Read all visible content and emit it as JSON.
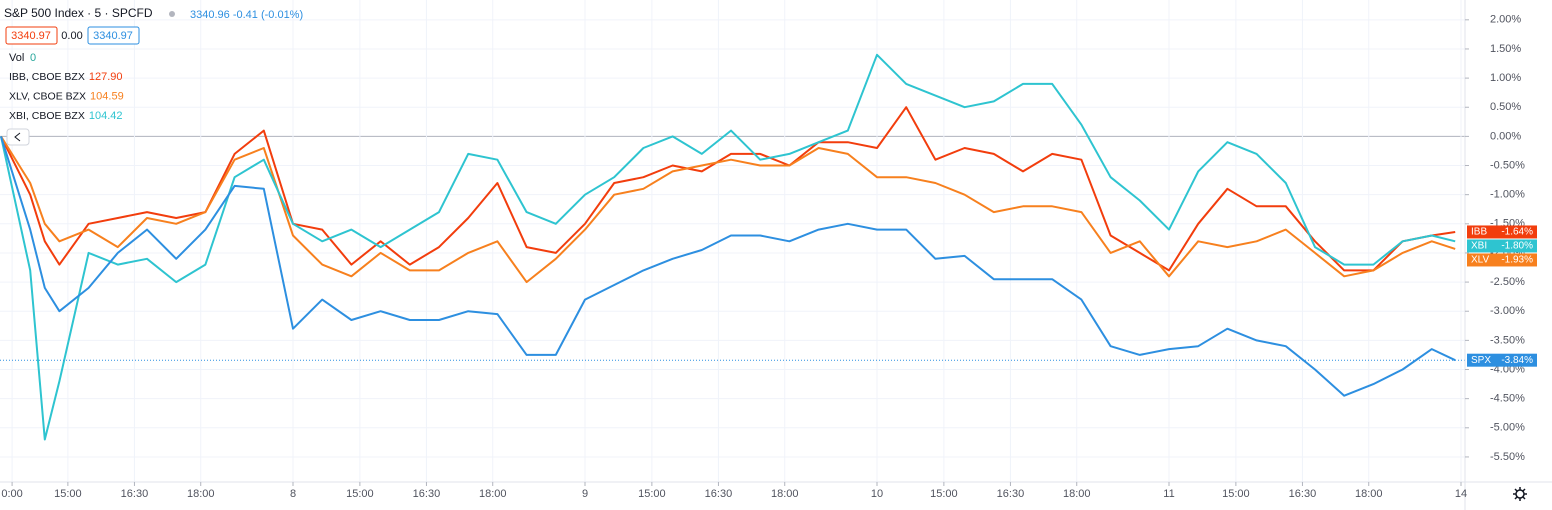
{
  "chart_data": {
    "type": "line",
    "quote": "3340.96  -0.41 (-0.01%)",
    "bid": "3340.97",
    "spread": "0.00",
    "ask": "3340.97",
    "volume_label": "Vol",
    "volume": 0,
    "x": [
      0,
      0.1,
      0.15,
      0.2,
      0.3,
      0.4,
      0.5,
      0.6,
      0.7,
      0.8,
      0.9,
      1.0,
      1.1,
      1.2,
      1.3,
      1.4,
      1.5,
      1.6,
      1.7,
      1.8,
      1.9,
      2.0,
      2.1,
      2.2,
      2.3,
      2.4,
      2.5,
      2.6,
      2.7,
      2.8,
      2.9,
      3.0,
      3.1,
      3.2,
      3.3,
      3.4,
      3.5,
      3.6,
      3.7,
      3.8,
      3.9,
      4.0,
      4.1,
      4.2,
      4.3,
      4.4,
      4.5,
      4.6,
      4.7,
      4.8,
      4.9,
      4.98
    ],
    "series": [
      {
        "name": "S&P 500 Index · 5 · SPCFD",
        "symbol": "SPX",
        "last_label": "-3.84%",
        "color": "#2d8fe0",
        "values": [
          0,
          -1.6,
          -2.6,
          -3.0,
          -2.6,
          -2.0,
          -1.6,
          -2.1,
          -1.6,
          -0.85,
          -0.9,
          -3.3,
          -2.8,
          -3.15,
          -3.0,
          -3.15,
          -3.15,
          -3.0,
          -3.05,
          -3.75,
          -3.75,
          -2.8,
          -2.55,
          -2.3,
          -2.1,
          -1.95,
          -1.7,
          -1.7,
          -1.8,
          -1.6,
          -1.5,
          -1.6,
          -1.6,
          -2.1,
          -2.05,
          -2.45,
          -2.45,
          -2.45,
          -2.8,
          -3.6,
          -3.75,
          -3.65,
          -3.6,
          -3.3,
          -3.5,
          -3.6,
          -4.0,
          -4.45,
          -4.25,
          -4.0,
          -3.65,
          -3.84
        ]
      },
      {
        "name": "IBB, CBOE BZX",
        "symbol": "IBB",
        "price": "127.90",
        "last_label": "-1.64%",
        "color": "#f23d0d",
        "values": [
          0,
          -1.0,
          -1.8,
          -2.2,
          -1.5,
          -1.4,
          -1.3,
          -1.4,
          -1.3,
          -0.3,
          0.1,
          -1.5,
          -1.6,
          -2.2,
          -1.8,
          -2.2,
          -1.9,
          -1.4,
          -0.8,
          -1.9,
          -2.0,
          -1.5,
          -0.8,
          -0.7,
          -0.5,
          -0.6,
          -0.3,
          -0.3,
          -0.5,
          -0.1,
          -0.1,
          -0.2,
          0.5,
          -0.4,
          -0.2,
          -0.3,
          -0.6,
          -0.3,
          -0.4,
          -1.7,
          -2.0,
          -2.3,
          -1.5,
          -0.9,
          -1.2,
          -1.2,
          -1.8,
          -2.3,
          -2.3,
          -1.8,
          -1.7,
          -1.64
        ]
      },
      {
        "name": "XLV, CBOE BZX",
        "symbol": "XLV",
        "price": "104.59",
        "last_label": "-1.93%",
        "color": "#f7801e",
        "values": [
          0,
          -0.8,
          -1.5,
          -1.8,
          -1.6,
          -1.9,
          -1.4,
          -1.5,
          -1.3,
          -0.4,
          -0.2,
          -1.7,
          -2.2,
          -2.4,
          -2.0,
          -2.3,
          -2.3,
          -2.0,
          -1.8,
          -2.5,
          -2.1,
          -1.6,
          -1.0,
          -0.9,
          -0.6,
          -0.5,
          -0.4,
          -0.5,
          -0.5,
          -0.2,
          -0.3,
          -0.7,
          -0.7,
          -0.8,
          -1.0,
          -1.3,
          -1.2,
          -1.2,
          -1.3,
          -2.0,
          -1.8,
          -2.4,
          -1.8,
          -1.9,
          -1.8,
          -1.6,
          -2.0,
          -2.4,
          -2.3,
          -2.0,
          -1.8,
          -1.93
        ]
      },
      {
        "name": "XBI, CBOE BZX",
        "symbol": "XBI",
        "price": "104.42",
        "last_label": "-1.80%",
        "color": "#2ec4d0",
        "values": [
          0,
          -2.3,
          -5.2,
          -4.2,
          -2.0,
          -2.2,
          -2.1,
          -2.5,
          -2.2,
          -0.7,
          -0.4,
          -1.5,
          -1.8,
          -1.6,
          -1.9,
          -1.6,
          -1.3,
          -0.3,
          -0.4,
          -1.3,
          -1.5,
          -1.0,
          -0.7,
          -0.2,
          0.0,
          -0.3,
          0.1,
          -0.4,
          -0.3,
          -0.1,
          0.1,
          1.4,
          0.9,
          0.7,
          0.5,
          0.6,
          0.9,
          0.9,
          0.2,
          -0.7,
          -1.1,
          -1.6,
          -0.6,
          -0.1,
          -0.3,
          -0.8,
          -1.9,
          -2.2,
          -2.2,
          -1.8,
          -1.7,
          -1.8
        ]
      }
    ],
    "xlim": [
      0,
      5
    ],
    "xticks": [
      {
        "value": 0.038,
        "label": "0:00"
      },
      {
        "value": 0.229,
        "label": "15:00"
      },
      {
        "value": 0.457,
        "label": "16:30"
      },
      {
        "value": 0.684,
        "label": "18:00"
      },
      {
        "value": 1,
        "label": "8"
      },
      {
        "value": 1.229,
        "label": "15:00"
      },
      {
        "value": 1.457,
        "label": "16:30"
      },
      {
        "value": 1.684,
        "label": "18:00"
      },
      {
        "value": 2,
        "label": "9"
      },
      {
        "value": 2.229,
        "label": "15:00"
      },
      {
        "value": 2.457,
        "label": "16:30"
      },
      {
        "value": 2.684,
        "label": "18:00"
      },
      {
        "value": 3,
        "label": "10"
      },
      {
        "value": 3.229,
        "label": "15:00"
      },
      {
        "value": 3.457,
        "label": "16:30"
      },
      {
        "value": 3.684,
        "label": "18:00"
      },
      {
        "value": 4,
        "label": "11"
      },
      {
        "value": 4.229,
        "label": "15:00"
      },
      {
        "value": 4.457,
        "label": "16:30"
      },
      {
        "value": 4.684,
        "label": "18:00"
      },
      {
        "value": 5,
        "label": "14"
      }
    ],
    "ylim": [
      -5.93,
      2.34
    ],
    "yticks": [
      {
        "value": 2,
        "label": "2.00%"
      },
      {
        "value": 1.5,
        "label": "1.50%"
      },
      {
        "value": 1,
        "label": "1.00%"
      },
      {
        "value": 0.5,
        "label": "0.50%"
      },
      {
        "value": 0,
        "label": "0.00%"
      },
      {
        "value": -0.5,
        "label": "-0.50%"
      },
      {
        "value": -1,
        "label": "-1.00%"
      },
      {
        "value": -1.5,
        "label": "-1.50%"
      },
      {
        "value": -2,
        "label": "-2.00%"
      },
      {
        "value": -2.5,
        "label": "-2.50%"
      },
      {
        "value": -3,
        "label": "-3.00%"
      },
      {
        "value": -3.5,
        "label": "-3.50%"
      },
      {
        "value": -4,
        "label": "-4.00%"
      },
      {
        "value": -4.5,
        "label": "-4.50%"
      },
      {
        "value": -5,
        "label": "-5.00%"
      },
      {
        "value": -5.5,
        "label": "-5.50%"
      }
    ],
    "grid": true
  }
}
